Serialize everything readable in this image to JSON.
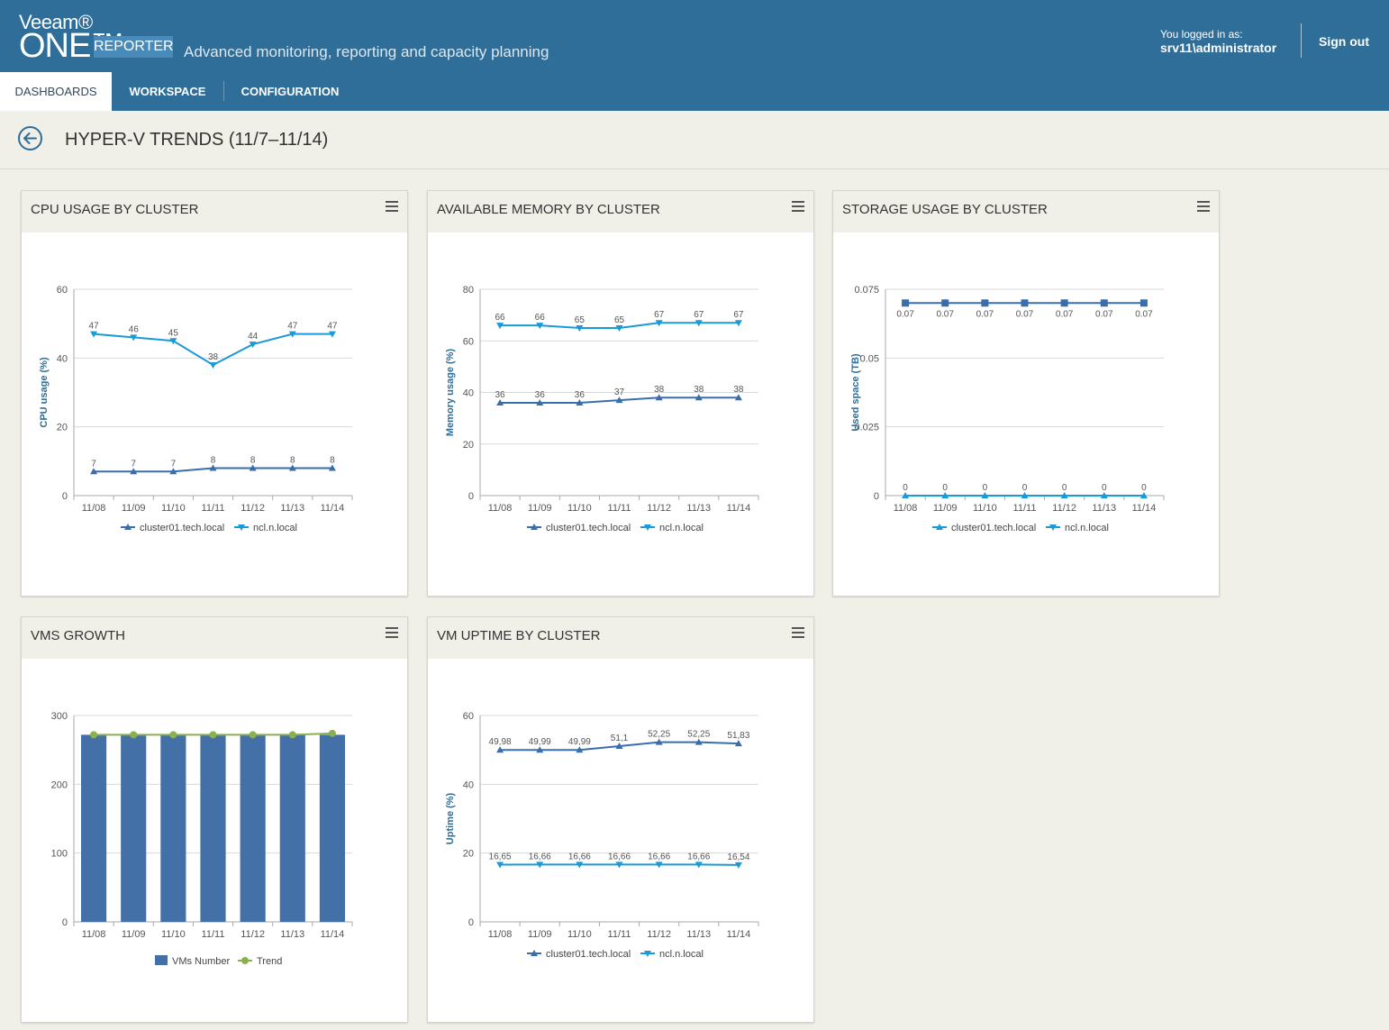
{
  "header": {
    "brand_veeam": "Veeam®",
    "brand_one": "ONE™",
    "brand_reporter": "REPORTER",
    "tagline": "Advanced monitoring, reporting and capacity planning",
    "logged_in_label": "You logged in as:",
    "logged_in_user": "srv11\\administrator",
    "sign_out": "Sign out"
  },
  "tabs": [
    {
      "label": "DASHBOARDS",
      "active": true
    },
    {
      "label": "WORKSPACE",
      "active": false
    },
    {
      "label": "CONFIGURATION",
      "active": false
    }
  ],
  "page": {
    "title": "HYPER-V TRENDS (11/7–11/14)"
  },
  "colors": {
    "header": "#2e6e99",
    "series1": "#3a6eab",
    "series2": "#1a9ad8",
    "bar": "#4470a8",
    "trend": "#8bb050"
  },
  "panels": {
    "cpu": {
      "title": "CPU USAGE BY CLUSTER"
    },
    "memory": {
      "title": "AVAILABLE MEMORY BY CLUSTER"
    },
    "storage": {
      "title": "STORAGE USAGE BY CLUSTER"
    },
    "vms": {
      "title": "VMS GROWTH"
    },
    "uptime": {
      "title": "VM UPTIME BY CLUSTER"
    }
  },
  "chart_data": [
    {
      "id": "cpu",
      "type": "line",
      "x": [
        "11/08",
        "11/09",
        "11/10",
        "11/11",
        "11/12",
        "11/13",
        "11/14"
      ],
      "ylabel": "CPU usage (%)",
      "ylim": [
        0,
        60
      ],
      "yticks": [
        "0",
        "20",
        "40",
        "60"
      ],
      "series": [
        {
          "name": "cluster01.tech.local",
          "values": [
            7,
            7,
            7,
            8,
            8,
            8,
            8
          ],
          "labels": [
            "7",
            "7",
            "7",
            "8",
            "8",
            "8",
            "8"
          ],
          "marker": "triangle-up",
          "color": "#3a6eab"
        },
        {
          "name": "ncl.n.local",
          "values": [
            47,
            46,
            45,
            38,
            44,
            47,
            47
          ],
          "labels": [
            "47",
            "46",
            "45",
            "38",
            "44",
            "47",
            "47"
          ],
          "marker": "triangle-down",
          "color": "#1a9ad8"
        }
      ]
    },
    {
      "id": "memory",
      "type": "line",
      "x": [
        "11/08",
        "11/09",
        "11/10",
        "11/11",
        "11/12",
        "11/13",
        "11/14"
      ],
      "ylabel": "Memory usage (%)",
      "ylim": [
        0,
        80
      ],
      "yticks": [
        "0",
        "20",
        "40",
        "60",
        "80"
      ],
      "series": [
        {
          "name": "cluster01.tech.local",
          "values": [
            36,
            36,
            36,
            37,
            38,
            38,
            38
          ],
          "labels": [
            "36",
            "36",
            "36",
            "37",
            "38",
            "38",
            "38"
          ],
          "marker": "triangle-up",
          "color": "#3a6eab"
        },
        {
          "name": "ncl.n.local",
          "values": [
            66,
            66,
            65,
            65,
            67,
            67,
            67
          ],
          "labels": [
            "66",
            "66",
            "65",
            "65",
            "67",
            "67",
            "67"
          ],
          "marker": "triangle-down",
          "color": "#1a9ad8"
        }
      ]
    },
    {
      "id": "storage",
      "type": "line",
      "x": [
        "11/08",
        "11/09",
        "11/10",
        "11/11",
        "11/12",
        "11/13",
        "11/14"
      ],
      "ylabel": "Used space (TB)",
      "ylim": [
        0,
        0.075
      ],
      "yticks": [
        "0",
        "0.025",
        "0.05",
        "0.075"
      ],
      "series": [
        {
          "name": "cluster01.tech.local",
          "values": [
            0,
            0,
            0,
            0,
            0,
            0,
            0
          ],
          "labels": [
            "0",
            "0",
            "0",
            "0",
            "0",
            "0",
            "0"
          ],
          "marker": "triangle-up",
          "color": "#1a9ad8"
        },
        {
          "name": "ncl.n.local",
          "values": [
            0.07,
            0.07,
            0.07,
            0.07,
            0.07,
            0.07,
            0.07
          ],
          "labels": [
            "0.07",
            "0.07",
            "0.07",
            "0.07",
            "0.07",
            "0.07",
            "0.07"
          ],
          "marker": "square",
          "color": "#3a6eab",
          "legend_marker": "triangle-down",
          "legend_color": "#1a9ad8"
        }
      ]
    },
    {
      "id": "vms",
      "type": "bar",
      "x": [
        "11/08",
        "11/09",
        "11/10",
        "11/11",
        "11/12",
        "11/13",
        "11/14"
      ],
      "ylabel": "",
      "ylim": [
        0,
        300
      ],
      "yticks": [
        "0",
        "100",
        "200",
        "300"
      ],
      "series": [
        {
          "name": "VMs Number",
          "values": [
            272,
            272,
            272,
            272,
            272,
            272,
            272
          ],
          "color": "#4470a8"
        },
        {
          "name": "Trend",
          "values": [
            272,
            272,
            272,
            272,
            272,
            272,
            274
          ],
          "color": "#8bb050"
        }
      ]
    },
    {
      "id": "uptime",
      "type": "line",
      "x": [
        "11/08",
        "11/09",
        "11/10",
        "11/11",
        "11/12",
        "11/13",
        "11/14"
      ],
      "ylabel": "Uptime (%)",
      "ylim": [
        0,
        60
      ],
      "yticks": [
        "0",
        "20",
        "40",
        "60"
      ],
      "series": [
        {
          "name": "cluster01.tech.local",
          "values": [
            49.98,
            49.99,
            49.99,
            51.1,
            52.25,
            52.25,
            51.83
          ],
          "labels": [
            "49,98",
            "49,99",
            "49,99",
            "51,1",
            "52,25",
            "52,25",
            "51,83"
          ],
          "marker": "triangle-up",
          "color": "#3a6eab"
        },
        {
          "name": "ncl.n.local",
          "values": [
            16.65,
            16.66,
            16.66,
            16.66,
            16.66,
            16.66,
            16.54
          ],
          "labels": [
            "16,65",
            "16,66",
            "16,66",
            "16,66",
            "16,66",
            "16,66",
            "16,54"
          ],
          "marker": "triangle-down",
          "color": "#1a9ad8"
        }
      ]
    }
  ]
}
